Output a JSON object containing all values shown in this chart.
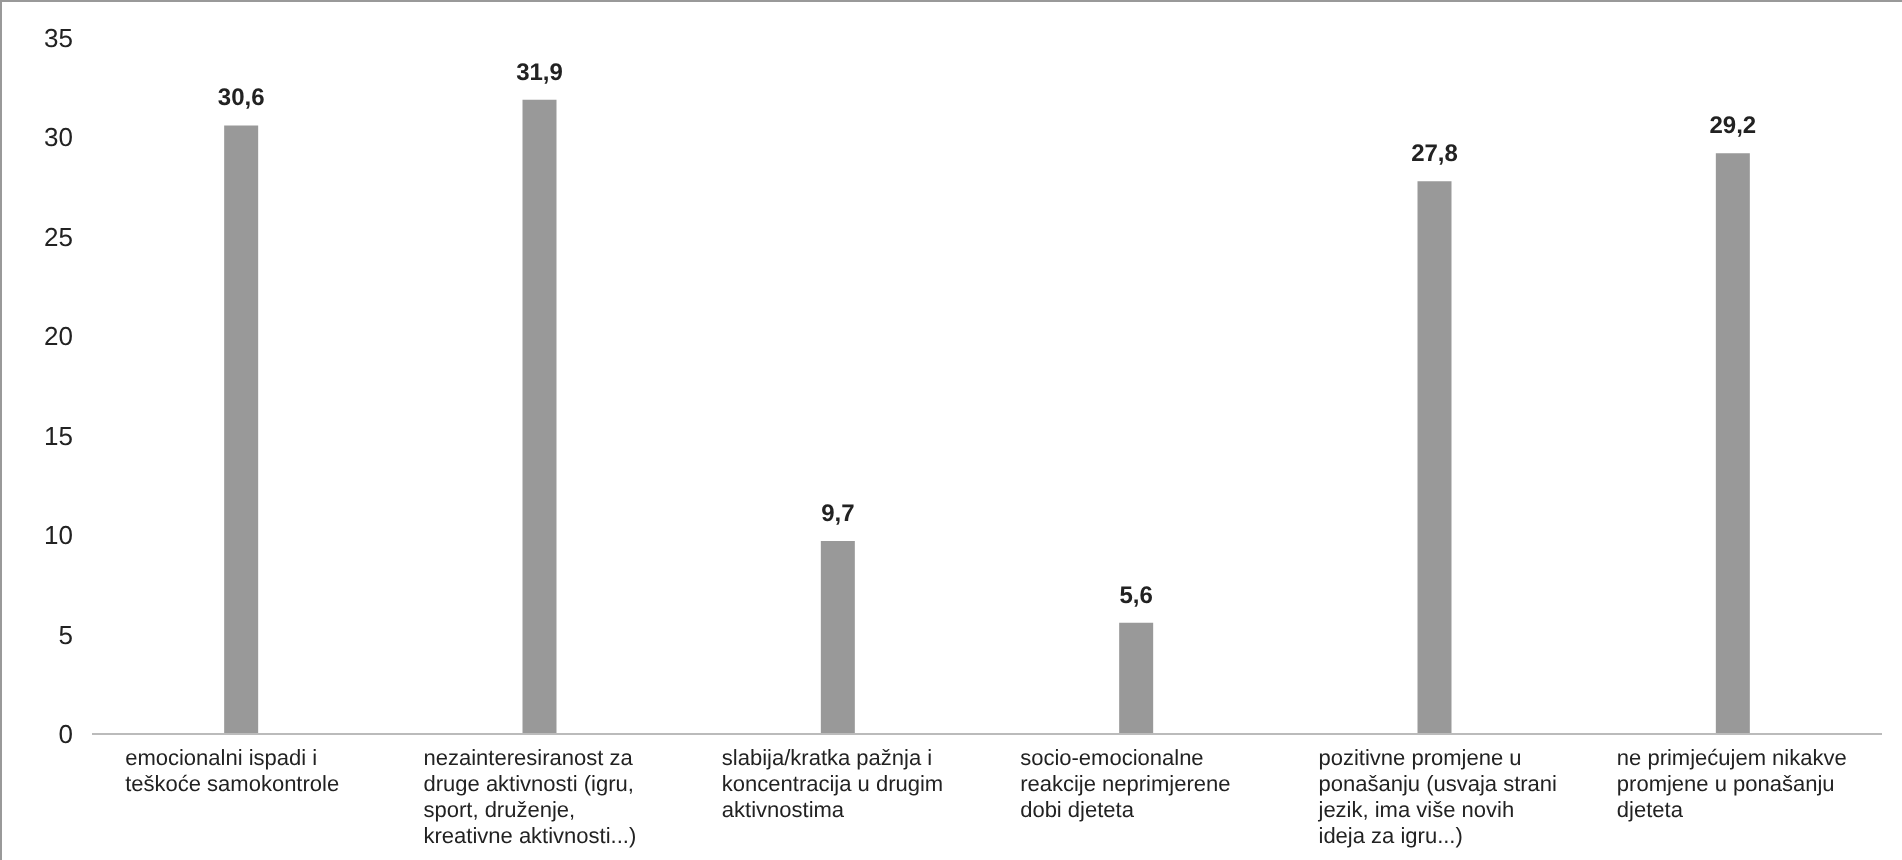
{
  "chart_data": {
    "type": "bar",
    "categories": [
      "emocionalni ispadi i teškoće samokontrole",
      "nezainteresiranost za druge aktivnosti (igru, sport, druženje, kreativne aktivnosti...)",
      "slabija/kratka pažnja i koncentracija u drugim aktivnostima",
      "socio-emocionalne reakcije neprimjerene dobi djeteta",
      "pozitivne promjene u ponašanju (usvaja strani jezik, ima više novih ideja za igru...)",
      "ne primjećujem nikakve promjene u ponašanju djeteta"
    ],
    "values": [
      30.6,
      31.9,
      9.7,
      5.6,
      27.8,
      29.2
    ],
    "value_labels": [
      "30,6",
      "31,9",
      "9,7",
      "5,6",
      "27,8",
      "29,2"
    ],
    "color": "#999999",
    "ylim": [
      0,
      35
    ],
    "yticks": [
      0,
      5,
      10,
      15,
      20,
      25,
      30,
      35
    ],
    "grid": false
  }
}
